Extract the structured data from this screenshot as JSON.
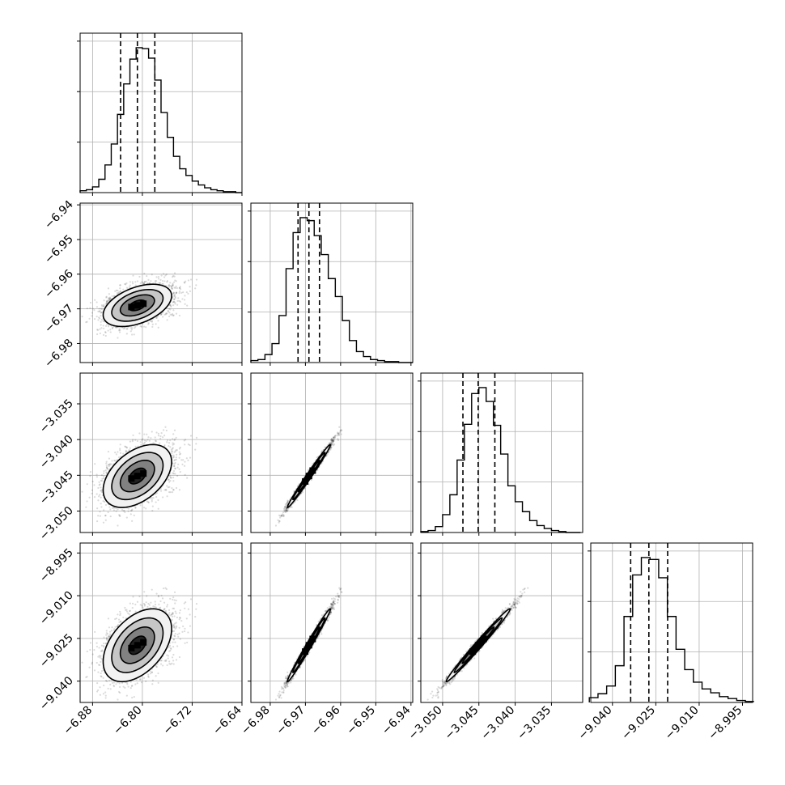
{
  "chart_data": {
    "type": "corner",
    "title": "",
    "grid": true,
    "parameters": [
      {
        "name": "",
        "range": [
          -6.9,
          -6.64
        ],
        "ticks": [
          -6.88,
          -6.8,
          -6.72,
          -6.64
        ],
        "tick_labels": [
          "−6.88",
          "−6.80",
          "−6.72",
          "−6.64"
        ],
        "quantiles": [
          -6.835,
          -6.808,
          -6.78
        ]
      },
      {
        "name": "",
        "range": [
          -6.9855,
          -6.9395
        ],
        "ticks": [
          -6.98,
          -6.97,
          -6.96,
          -6.95,
          -6.94
        ],
        "tick_labels": [
          "−6.98",
          "−6.97",
          "−6.96",
          "−6.95",
          "−6.94"
        ],
        "quantiles": [
          -6.9721,
          -6.969,
          -6.966
        ]
      },
      {
        "name": "",
        "range": [
          -3.053,
          -3.0307
        ],
        "ticks": [
          -3.05,
          -3.045,
          -3.04,
          -3.035
        ],
        "tick_labels": [
          "−3.050",
          "−3.045",
          "−3.040",
          "−3.035"
        ],
        "quantiles": [
          -3.0472,
          -3.0451,
          -3.0428
        ]
      },
      {
        "name": "",
        "range": [
          -9.0475,
          -8.9915
        ],
        "ticks": [
          -9.04,
          -9.025,
          -9.01,
          -8.995
        ],
        "tick_labels": [
          "−9.040",
          "−9.025",
          "−9.010",
          "−8.995"
        ],
        "quantiles": [
          -9.0337,
          -9.0274,
          -9.0209
        ]
      }
    ],
    "correlation_matrix": [
      [
        1.0,
        0.45,
        0.45,
        0.45
      ],
      [
        0.45,
        1.0,
        0.99,
        0.99
      ],
      [
        0.45,
        0.99,
        1.0,
        0.99
      ],
      [
        0.45,
        0.99,
        0.99,
        1.0
      ]
    ],
    "histograms": [
      {
        "param": 0,
        "bins": [
          -6.895,
          -6.885,
          -6.875,
          -6.865,
          -6.855,
          -6.845,
          -6.835,
          -6.825,
          -6.815,
          -6.805,
          -6.795,
          -6.785,
          -6.775,
          -6.765,
          -6.755,
          -6.745,
          -6.735,
          -6.725,
          -6.715,
          -6.705,
          -6.695,
          -6.685,
          -6.675,
          -6.665,
          -6.655,
          -6.645
        ],
        "counts": [
          2,
          3,
          6,
          14,
          29,
          51,
          82,
          114,
          140,
          152,
          151,
          141,
          118,
          84,
          58,
          38,
          25,
          18,
          12,
          8,
          5,
          3,
          2,
          1,
          1,
          0
        ]
      },
      {
        "param": 1,
        "bins": [
          -6.9845,
          -6.9825,
          -6.9805,
          -6.9785,
          -6.9765,
          -6.9745,
          -6.9725,
          -6.9705,
          -6.9685,
          -6.9665,
          -6.9645,
          -6.9625,
          -6.9605,
          -6.9585,
          -6.9565,
          -6.9545,
          -6.9525,
          -6.9505,
          -6.9485,
          -6.9465,
          -6.9445,
          -6.9425,
          -6.9405
        ],
        "counts": [
          2,
          3,
          8,
          19,
          47,
          94,
          130,
          145,
          142,
          127,
          108,
          84,
          66,
          42,
          22,
          11,
          6,
          3,
          2,
          1,
          1,
          0,
          0
        ]
      },
      {
        "param": 2,
        "bins": [
          -3.0525,
          -3.0515,
          -3.0505,
          -3.0495,
          -3.0485,
          -3.0475,
          -3.0465,
          -3.0455,
          -3.0445,
          -3.0435,
          -3.0425,
          -3.0415,
          -3.0405,
          -3.0395,
          -3.0385,
          -3.0375,
          -3.0365,
          -3.0355,
          -3.0345,
          -3.0335,
          -3.0325,
          -3.0315
        ],
        "counts": [
          1,
          2,
          6,
          18,
          38,
          73,
          109,
          140,
          146,
          132,
          108,
          79,
          47,
          31,
          21,
          12,
          7,
          4,
          2,
          1,
          0,
          0
        ]
      },
      {
        "param": 3,
        "bins": [
          -9.0465,
          -9.0435,
          -9.0405,
          -9.0375,
          -9.0345,
          -9.0315,
          -9.0285,
          -9.0255,
          -9.0225,
          -9.0195,
          -9.0165,
          -9.0135,
          -9.0105,
          -9.0075,
          -9.0045,
          -9.0015,
          -8.9985,
          -8.9955,
          -8.9925
        ],
        "counts": [
          5,
          9,
          17,
          38,
          89,
          132,
          150,
          148,
          129,
          89,
          55,
          34,
          21,
          14,
          10,
          6,
          4,
          2,
          1
        ]
      }
    ]
  }
}
